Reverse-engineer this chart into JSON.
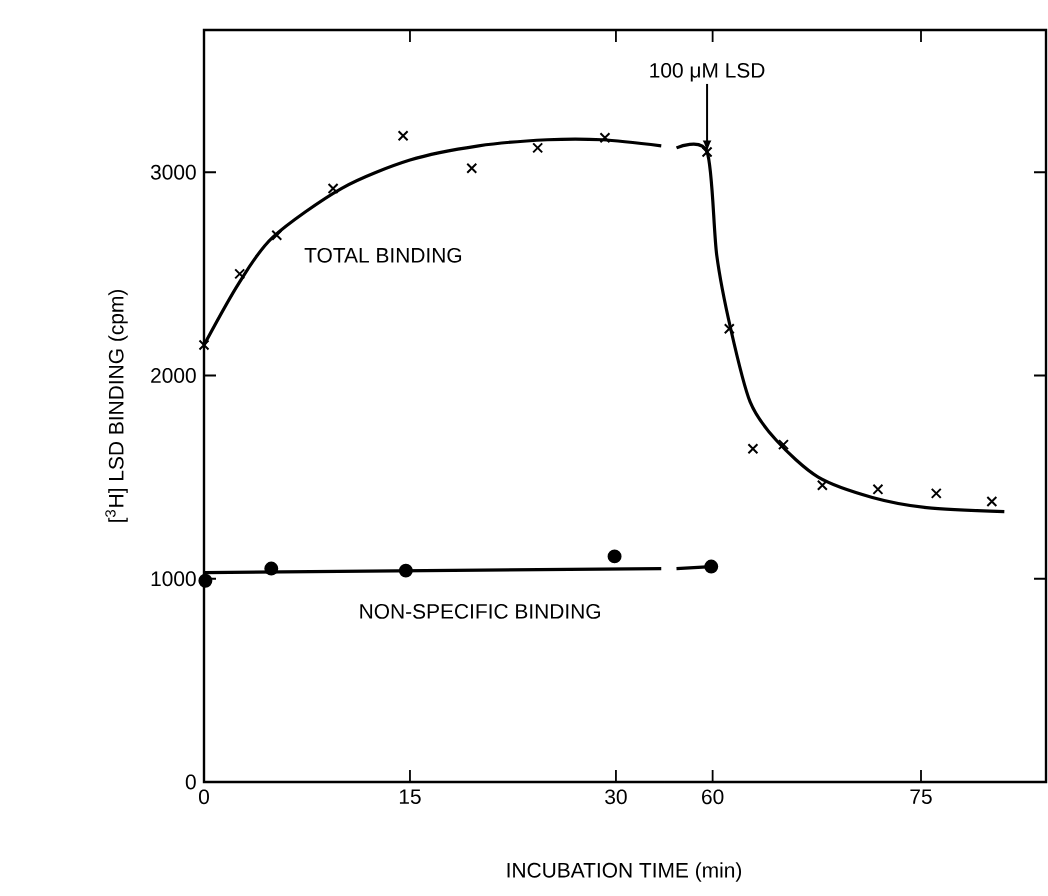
{
  "chart_data": [
    {
      "type": "scatter",
      "ylabel": "[$^{3}$H] LSD BINDING (cpm)",
      "xlabel": "INCUBATION TIME (min)",
      "xlim": [
        0,
        33.5
      ],
      "ylim": [
        0,
        3700
      ],
      "xticks": [
        0,
        15,
        30
      ],
      "yticks": [
        0,
        1000,
        2000,
        3000
      ],
      "series": [
        {
          "name": "TOTAL BINDING",
          "marker": "cross",
          "color": "#000000",
          "x": [
            0,
            2.6,
            5.3,
            9.4,
            14.5,
            19.5,
            24.3,
            29.2
          ],
          "values": [
            2150,
            2500,
            2690,
            2920,
            3180,
            3020,
            3120,
            3170
          ]
        },
        {
          "type": "line",
          "marker": "none",
          "color": "#000000",
          "x": [
            0,
            2.5,
            5,
            10,
            15,
            20,
            25,
            29,
            33.3
          ],
          "values": [
            2150,
            2450,
            2680,
            2920,
            3060,
            3130,
            3160,
            3160,
            3130
          ]
        },
        {
          "name": "NON-SPECIFIC BINDING",
          "marker": "circle",
          "color": "#000000",
          "x": [
            0.1,
            4.9,
            14.7,
            29.9
          ],
          "values": [
            990,
            1050,
            1040,
            1110
          ]
        },
        {
          "type": "line",
          "marker": "none",
          "color": "#000000",
          "x": [
            0,
            33.3
          ],
          "values": [
            1030,
            1050
          ]
        }
      ]
    },
    {
      "type": "scatter",
      "xlim": [
        56.5,
        84
      ],
      "ylim": [
        0,
        3700
      ],
      "xticks": [
        60,
        75
      ],
      "yticks": [
        {
          "value": 1000,
          "label": null
        },
        {
          "value": 2000,
          "label": null
        },
        {
          "value": 3000,
          "label": null
        }
      ],
      "tick_labels": "x",
      "annotations": [
        {
          "text": "100 μM LSD",
          "x": 59.6,
          "y": 3100
        }
      ],
      "series": [
        {
          "marker": "cross",
          "color": "#000000",
          "x": [
            59.6,
            61.2,
            62.9,
            65.1,
            67.9,
            71.9,
            76.1,
            80.1
          ],
          "values": [
            3100,
            2230,
            1640,
            1660,
            1460,
            1440,
            1420,
            1380
          ]
        },
        {
          "type": "line",
          "marker": "none",
          "color": "#000000",
          "x": [
            57.4,
            59.6,
            60.3,
            61.3,
            62.7,
            64.6,
            67.6,
            71.5,
            75.4,
            81
          ],
          "values": [
            3120,
            3100,
            2590,
            2230,
            1870,
            1680,
            1500,
            1400,
            1350,
            1330
          ]
        },
        {
          "marker": "circle",
          "color": "#000000",
          "x": [
            59.9
          ],
          "values": [
            1060
          ]
        },
        {
          "type": "line",
          "marker": "none",
          "color": "#000000",
          "x": [
            57.4,
            59.9
          ],
          "values": [
            1050,
            1060
          ]
        }
      ]
    }
  ]
}
